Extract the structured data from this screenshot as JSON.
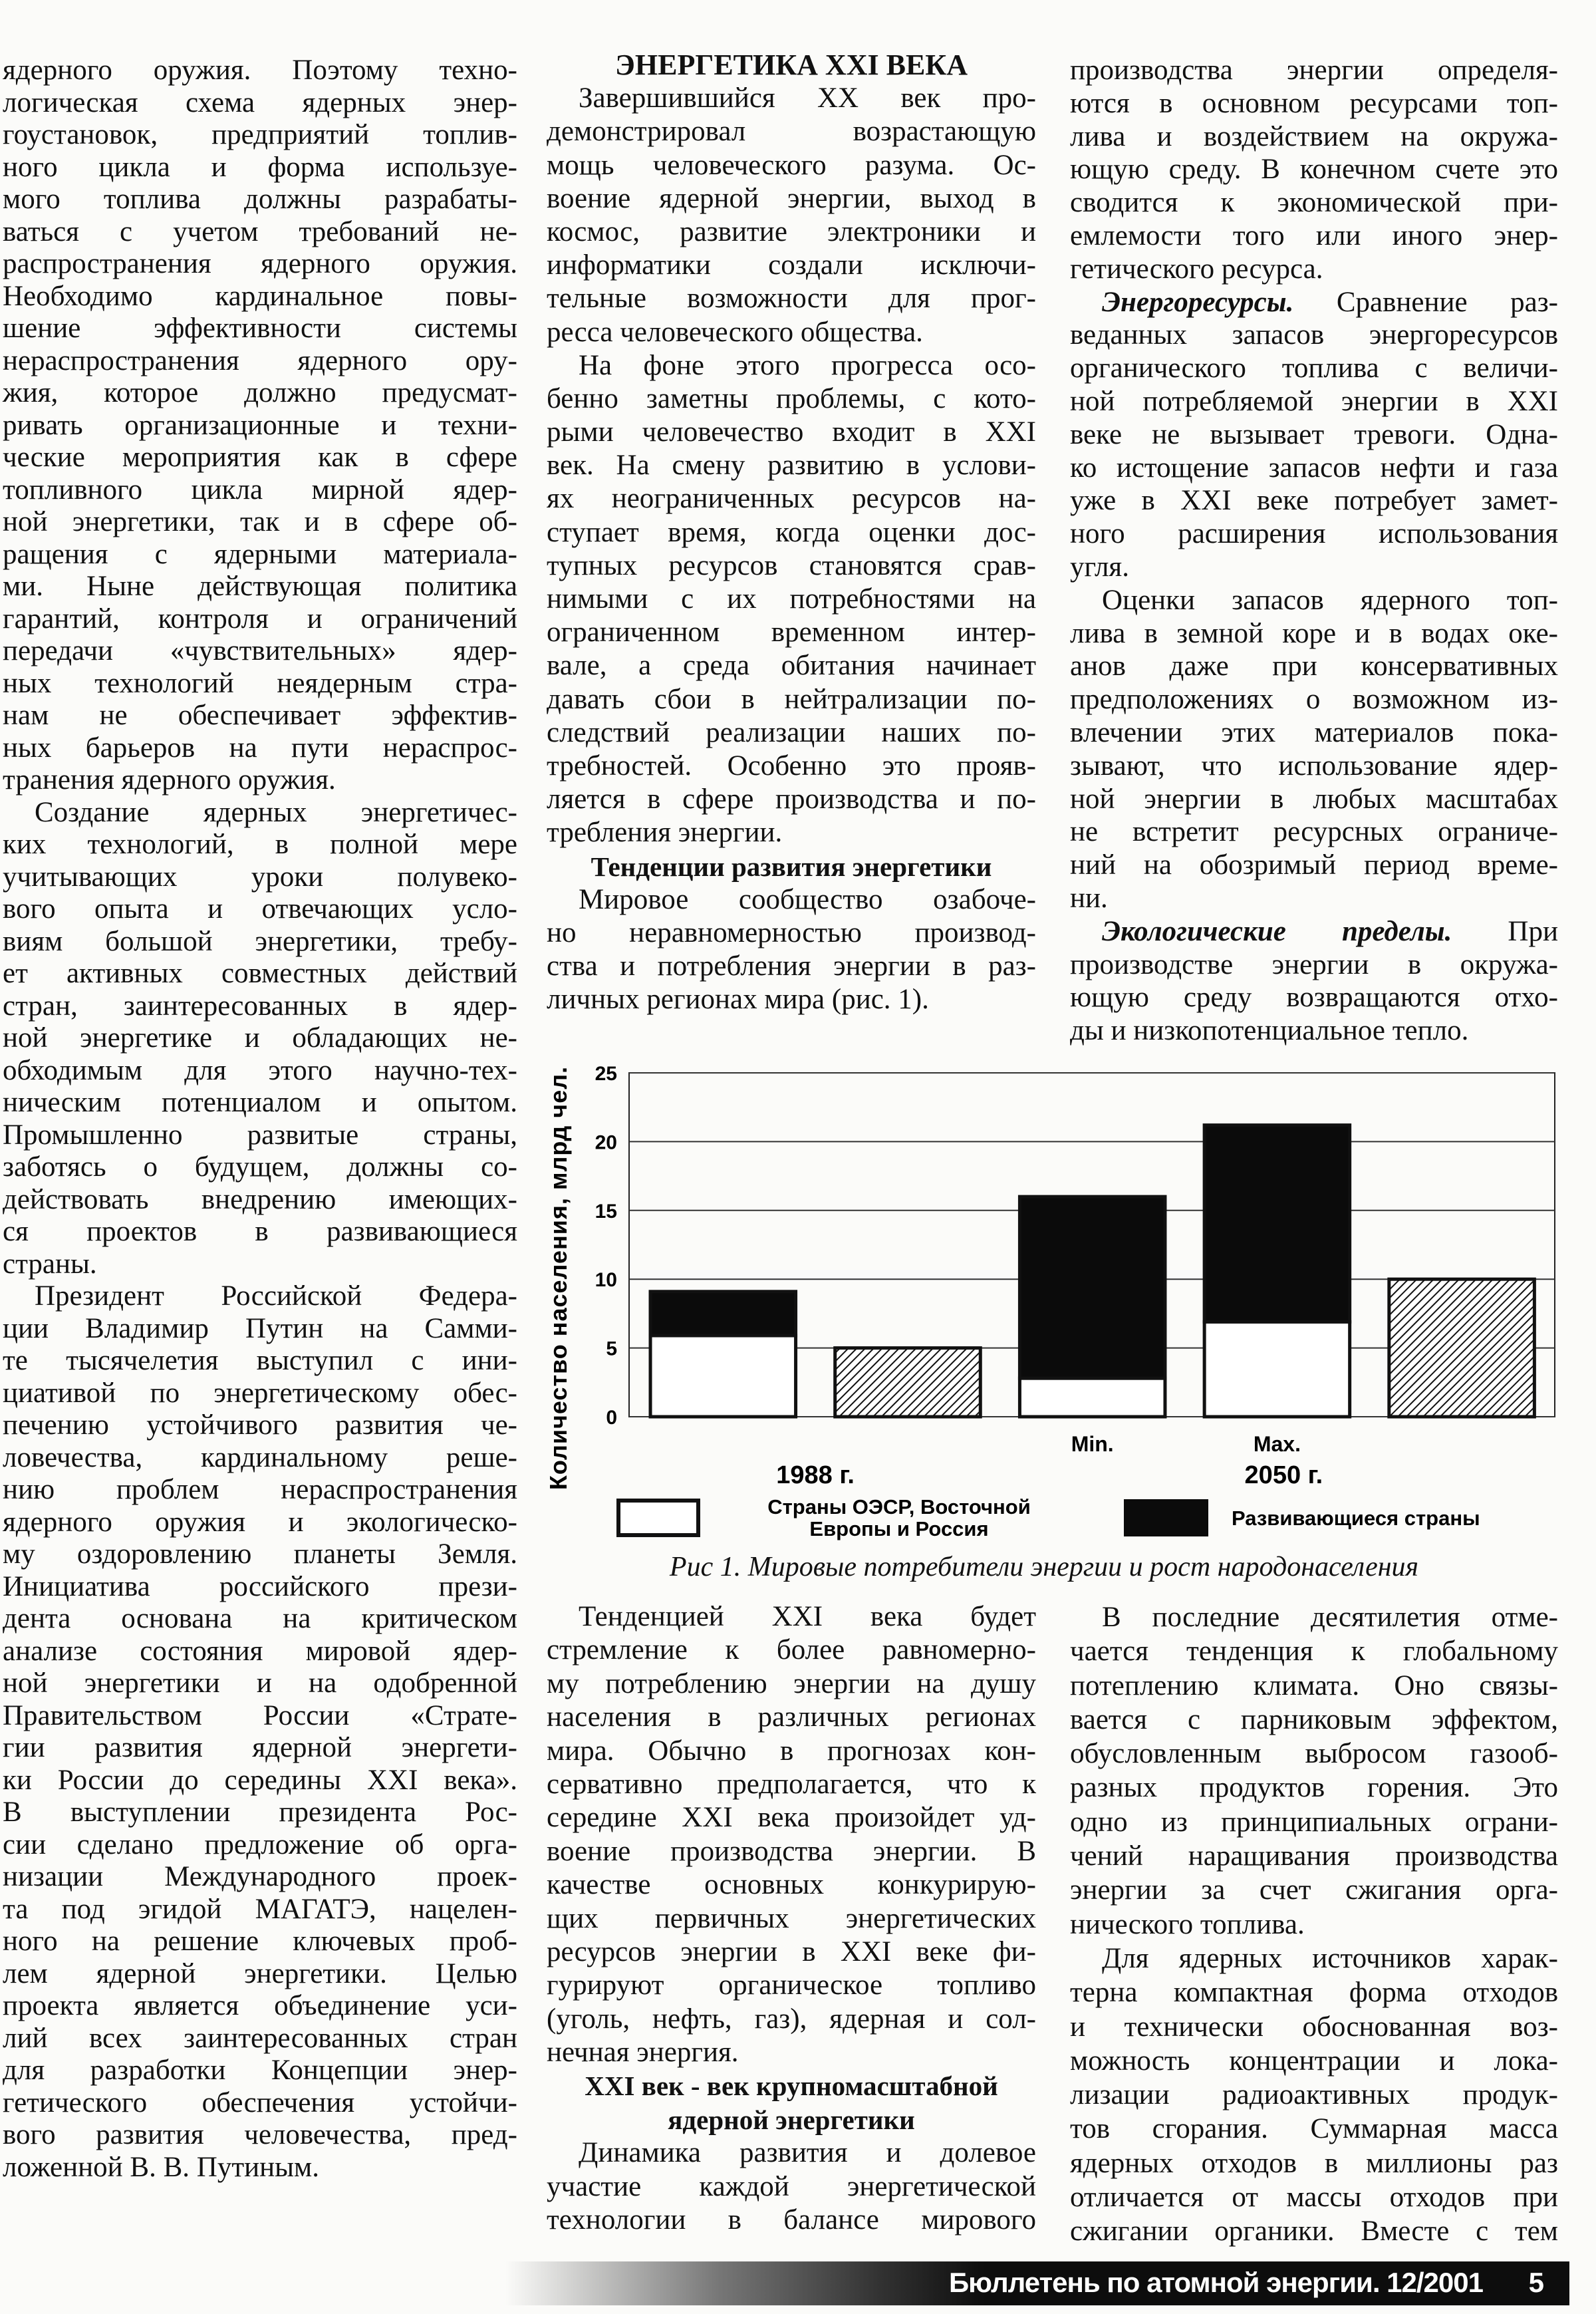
{
  "left_column": {
    "blocks": [
      {
        "type": "cont",
        "lines": [
          "ядерного оружия. Поэтому техно-",
          "логическая схема ядерных энер-",
          "гоустановок, предприятий топлив-",
          "ного цикла и форма используе-",
          "мого топлива должны разрабаты-",
          "ваться с учетом требований не-",
          "распространения ядерного оружия.",
          "Необходимо кардинальное повы-",
          "шение эффективности системы",
          "нераспространения ядерного ору-",
          "жия, которое должно предусмат-",
          "ривать организационные и техни-",
          "ческие мероприятия как в сфере",
          "топливного цикла мирной ядер-",
          "ной энергетики, так и в сфере об-",
          "ращения с ядерными материала-",
          "ми. Ныне действующая политика",
          "гарантий, контроля и ограничений",
          "передачи «чувствительных» ядер-",
          "ных технологий неядерным стра-",
          "нам не обеспечивает эффектив-",
          "ных барьеров на пути нераспрос-",
          "транения ядерного оружия."
        ]
      },
      {
        "type": "p",
        "lines": [
          "Создание ядерных энергетичес-",
          "ких технологий, в полной мере",
          "учитывающих уроки полувеко-",
          "вого опыта и отвечающих усло-",
          "виям большой энергетики, требу-",
          "ет активных совместных действий",
          "стран, заинтересованных в ядер-",
          "ной энергетике и обладающих не-",
          "обходимым для этого научно-тех-",
          "ническим потенциалом и опытом.",
          "Промышленно развитые страны,",
          "заботясь о будущем, должны со-",
          "действовать внедрению имеющих-",
          "ся проектов в развивающиеся",
          "страны."
        ]
      },
      {
        "type": "p",
        "lines": [
          "Президент Российской Федера-",
          "ции Владимир Путин на Самми-",
          "те тысячелетия выступил с ини-",
          "циативой по энергетическому обес-",
          "печению устойчивого развития че-",
          "ловечества, кардинальному реше-",
          "нию проблем нераспространения",
          "ядерного оружия и экологическо-",
          "му оздоровлению планеты Земля.",
          "Инициатива российского прези-",
          "дента основана на критическом",
          "анализе состояния мировой ядер-",
          "ной энергетики и на одобренной",
          "Правительством России «Страте-",
          "гии развития ядерной энергети-",
          "ки России до середины XXI века».",
          "В выступлении президента Рос-",
          "сии сделано предложение об орга-",
          "низации Международного проек-",
          "та под эгидой МАГАТЭ, нацелен-",
          "ного на решение ключевых проб-",
          "лем ядерной энергетики. Целью",
          "проекта является объединение уси-",
          "лий всех заинтересованных стран",
          "для разработки Концепции энер-",
          "гетического обеспечения устойчи-",
          "вого развития человечества, пред-",
          "ложенной В. В. Путиным."
        ]
      }
    ]
  },
  "middle_top": {
    "blocks": [
      {
        "type": "hbig",
        "lines": [
          "ЭНЕРГЕТИКА XXI ВЕКА"
        ]
      },
      {
        "type": "p",
        "lines": [
          "Завершившийся XX век про-",
          "демонстрировал возрастающую",
          "мощь человеческого разума. Ос-",
          "воение ядерной энергии, выход в",
          "космос, развитие электроники и",
          "информатики создали исключи-",
          "тельные возможности для прог-",
          "ресса человеческого общества."
        ]
      },
      {
        "type": "p",
        "lines": [
          "На фоне этого прогресса осо-",
          "бенно заметны проблемы, с кото-",
          "рыми человечество входит в XXI",
          "век. На смену развитию в услови-",
          "ях неограниченных ресурсов на-",
          "ступает время, когда оценки дос-",
          "тупных ресурсов становятся срав-",
          "нимыми с их потребностями на",
          "ограниченном временном интер-",
          "вале, а среда обитания начинает",
          "давать сбои в нейтрализации по-",
          "следствий реализации наших по-",
          "требностей. Особенно это прояв-",
          "ляется в сфере производства и по-",
          "требления энергии."
        ]
      },
      {
        "type": "h",
        "lines": [
          "Тенденции развития энергетики"
        ]
      },
      {
        "type": "p",
        "lines": [
          "Мировое сообщество озабоче-",
          "но неравномерностью производ-",
          "ства и потребления энергии в раз-",
          "личных регионах мира (рис. 1)."
        ]
      }
    ]
  },
  "right_top": {
    "blocks": [
      {
        "type": "cont",
        "lines": [
          "производства энергии определя-",
          "ются в основном ресурсами топ-",
          "лива и воздействием на окружа-",
          "ющую среду. В конечном счете это",
          "сводится к экономической при-",
          "емлемости того или иного энер-",
          "гетического ресурса."
        ]
      },
      {
        "type": "p",
        "lead": "Энергоресурсы.",
        "lines": [
          " Сравнение раз-",
          "веданных запасов энергоресурсов",
          "органического топлива с величи-",
          "ной потребляемой энергии в XXI",
          "веке не вызывает тревоги. Одна-",
          "ко истощение запасов нефти и газа",
          "уже в XXI веке потребует замет-",
          "ного расширения использования",
          "угля."
        ]
      },
      {
        "type": "p",
        "lines": [
          "Оценки запасов ядерного топ-",
          "лива в земной коре и в водах оке-",
          "анов даже при консервативных",
          "предположениях о возможном из-",
          "влечении этих материалов пока-",
          "зывают, что использование ядер-",
          "ной энергии в любых масштабах",
          "не встретит ресурсных ограниче-",
          "ний на обозримый период време-",
          "ни."
        ]
      },
      {
        "type": "p",
        "lead": "Экологические пределы.",
        "lines": [
          " При",
          "производстве энергии в окружа-",
          "ющую среду возвращаются отхо-",
          "ды и низкопотенциальное тепло."
        ]
      }
    ]
  },
  "middle_bottom": {
    "blocks": [
      {
        "type": "p",
        "lines": [
          "Тенденцией XXI века будет",
          "стремление к более равномерно-",
          "му потреблению энергии на душу",
          "населения в различных регионах",
          "мира. Обычно в прогнозах кон-",
          "сервативно предполагается, что к",
          "середине XXI века произойдет уд-",
          "воение производства энергии. В",
          "качестве основных конкурирую-",
          "щих первичных энергетических",
          "ресурсов энергии в XXI веке фи-",
          "гурируют органическое топливо",
          "(уголь, нефть, газ), ядерная и сол-",
          "нечная энергия."
        ]
      },
      {
        "type": "h",
        "lines": [
          "XXI век - век крупномасштабной",
          "ядерной энергетики"
        ]
      },
      {
        "type": "popen",
        "lines": [
          "Динамика развития и долевое",
          "участие каждой энергетической",
          "технологии в балансе мирового"
        ]
      }
    ]
  },
  "right_bottom": {
    "blocks": [
      {
        "type": "p",
        "lines": [
          "В последние десятилетия отме-",
          "чается тенденция к глобальному",
          "потеплению климата. Оно связы-",
          "вается с парниковым эффектом,",
          "обусловленным выбросом газооб-",
          "разных продуктов горения. Это",
          "одно из принципиальных ограни-",
          "чений наращивания производства",
          "энергии за счет сжигания орга-",
          "нического топлива."
        ]
      },
      {
        "type": "popen",
        "lines": [
          "Для ядерных источников харак-",
          "терна компактная форма отходов",
          "и технически обоснованная воз-",
          "можность концентрации и лока-",
          "лизации радиоактивных продук-",
          "тов сгорания. Суммарная масса",
          "ядерных отходов в миллионы раз",
          "отличается от массы отходов при",
          "сжигании органики. Вместе с тем"
        ]
      }
    ]
  },
  "chart_data": {
    "type": "bar",
    "stacked": true,
    "ylabel": "Количество населения, млрд чел.",
    "ylim": [
      0,
      25
    ],
    "yticks": [
      0,
      5,
      10,
      15,
      20,
      25
    ],
    "grid": true,
    "categories": [
      "",
      "",
      "Min.",
      "Max.",
      ""
    ],
    "groups": [
      {
        "label": "1988 г.",
        "bars": [
          0,
          1
        ]
      },
      {
        "label": "2050 г.",
        "bars": [
          2,
          3,
          4
        ]
      }
    ],
    "series": [
      {
        "name": "Страны ОЭСР, Восточной Европы и Россия",
        "fill": "white",
        "values": [
          5.9,
          0,
          2.8,
          6.9,
          0
        ]
      },
      {
        "name": "Развивающиеся страны",
        "fill": "black",
        "values": [
          3.2,
          0,
          13.2,
          14.3,
          0
        ]
      },
      {
        "fill": "hatched",
        "values": [
          0,
          5,
          0,
          0,
          10
        ]
      }
    ],
    "legend": {
      "placement": "bottom",
      "items": [
        {
          "fill": "white",
          "lines": [
            "Страны ОЭСР, Восточной",
            "Европы и Россия"
          ]
        },
        {
          "fill": "black",
          "lines": [
            "Развивающиеся страны"
          ]
        }
      ]
    },
    "caption": "Рис 1. Мировые потребители энергии и рост народонаселения"
  },
  "footer": {
    "journal": "Бюллетень по атомной энергии. 12/2001",
    "page": "5"
  }
}
